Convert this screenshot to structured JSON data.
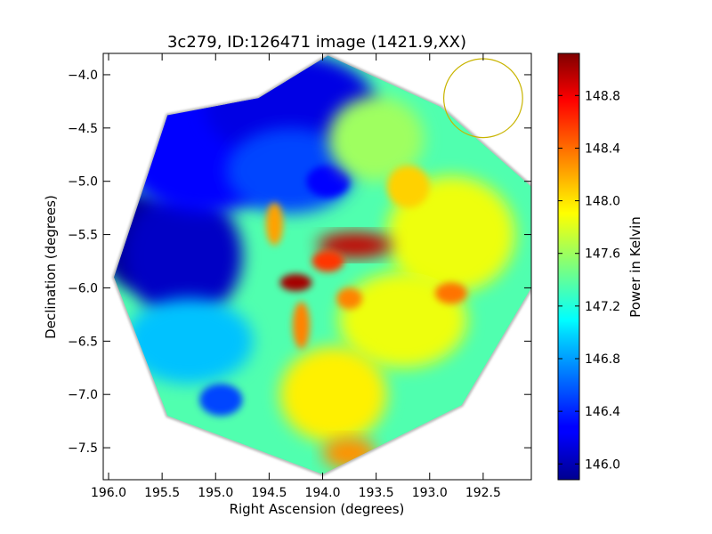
{
  "chart_data": {
    "type": "heatmap",
    "title": "3c279, ID:126471 image (1421.9,XX)",
    "xlabel": "Right Ascension (degrees)",
    "ylabel": "Declination (degrees)",
    "xlim": [
      196.05,
      192.05
    ],
    "ylim": [
      -7.8,
      -3.8
    ],
    "x_ticks": [
      196.0,
      195.5,
      195.0,
      194.5,
      194.0,
      193.5,
      193.0,
      192.5
    ],
    "x_tick_labels": [
      "196.0",
      "195.5",
      "195.0",
      "194.5",
      "194.0",
      "193.5",
      "193.0",
      "192.5"
    ],
    "y_ticks": [
      -4.0,
      -4.5,
      -5.0,
      -5.5,
      -6.0,
      -6.5,
      -7.0,
      -7.5
    ],
    "y_tick_labels": [
      "−4.0",
      "−4.5",
      "−5.0",
      "−5.5",
      "−6.0",
      "−6.5",
      "−7.0",
      "−7.5"
    ],
    "colormap": "jet",
    "colorbar": {
      "label": "Power in Kelvin",
      "min": 145.88,
      "max": 149.12,
      "ticks": [
        146.0,
        146.4,
        146.8,
        147.2,
        147.6,
        148.0,
        148.4,
        148.8
      ],
      "tick_labels": [
        "146.0",
        "146.4",
        "146.8",
        "147.2",
        "147.6",
        "148.0",
        "148.4",
        "148.8"
      ]
    },
    "footprint_polygon": [
      [
        193.95,
        -3.82
      ],
      [
        192.9,
        -4.3
      ],
      [
        192.05,
        -5.05
      ],
      [
        192.05,
        -6.0
      ],
      [
        192.7,
        -7.1
      ],
      [
        194.0,
        -7.75
      ],
      [
        195.45,
        -7.2
      ],
      [
        195.95,
        -5.9
      ],
      [
        195.45,
        -4.38
      ],
      [
        194.6,
        -4.22
      ]
    ],
    "field_value": 147.35,
    "features": [
      {
        "ra": 195.75,
        "dec": -5.55,
        "value": 145.95,
        "rx": 0.35,
        "ry": 0.45
      },
      {
        "ra": 195.3,
        "dec": -5.7,
        "value": 146.1,
        "rx": 0.55,
        "ry": 0.6
      },
      {
        "ra": 195.1,
        "dec": -4.7,
        "value": 146.3,
        "rx": 0.8,
        "ry": 0.6
      },
      {
        "ra": 194.3,
        "dec": -4.3,
        "value": 146.2,
        "rx": 0.8,
        "ry": 0.5
      },
      {
        "ra": 194.3,
        "dec": -4.9,
        "value": 146.5,
        "rx": 0.6,
        "ry": 0.4
      },
      {
        "ra": 193.95,
        "dec": -5.0,
        "value": 146.3,
        "rx": 0.2,
        "ry": 0.15
      },
      {
        "ra": 195.25,
        "dec": -6.5,
        "value": 146.9,
        "rx": 0.6,
        "ry": 0.4
      },
      {
        "ra": 194.95,
        "dec": -7.05,
        "value": 146.5,
        "rx": 0.2,
        "ry": 0.15
      },
      {
        "ra": 193.5,
        "dec": -4.6,
        "value": 147.6,
        "rx": 0.45,
        "ry": 0.4
      },
      {
        "ra": 192.8,
        "dec": -5.5,
        "value": 147.85,
        "rx": 0.6,
        "ry": 0.55
      },
      {
        "ra": 193.2,
        "dec": -5.05,
        "value": 148.05,
        "rx": 0.2,
        "ry": 0.2
      },
      {
        "ra": 193.25,
        "dec": -6.3,
        "value": 147.85,
        "rx": 0.6,
        "ry": 0.45
      },
      {
        "ra": 192.8,
        "dec": -6.05,
        "value": 148.35,
        "rx": 0.15,
        "ry": 0.1
      },
      {
        "ra": 193.9,
        "dec": -7.0,
        "value": 147.95,
        "rx": 0.5,
        "ry": 0.45
      },
      {
        "ra": 193.75,
        "dec": -7.55,
        "value": 148.25,
        "rx": 0.25,
        "ry": 0.15
      },
      {
        "ra": 193.7,
        "dec": -5.6,
        "value": 148.9,
        "rx": 0.35,
        "ry": 0.12
      },
      {
        "ra": 194.25,
        "dec": -5.95,
        "value": 149.0,
        "rx": 0.15,
        "ry": 0.08
      },
      {
        "ra": 193.95,
        "dec": -5.75,
        "value": 148.55,
        "rx": 0.15,
        "ry": 0.1
      },
      {
        "ra": 194.45,
        "dec": -5.4,
        "value": 148.2,
        "rx": 0.08,
        "ry": 0.2
      },
      {
        "ra": 194.2,
        "dec": -6.35,
        "value": 148.3,
        "rx": 0.08,
        "ry": 0.22
      },
      {
        "ra": 193.75,
        "dec": -6.1,
        "value": 148.3,
        "rx": 0.12,
        "ry": 0.1
      }
    ],
    "beam_circle": {
      "ra": 192.5,
      "dec": -4.22,
      "radius_deg": 0.37,
      "color": "#c8b400"
    }
  }
}
